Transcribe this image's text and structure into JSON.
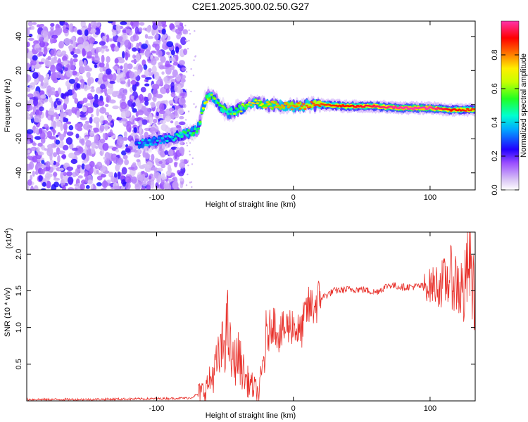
{
  "title": "C2E1.2025.300.02.50.G27",
  "chart_data": [
    {
      "type": "heatmap",
      "xlabel": "Height of straight line (km)",
      "ylabel": "Frequency (Hz)",
      "xlim": [
        -195,
        133
      ],
      "ylim": [
        -50,
        49
      ],
      "x_ticks": [
        -100,
        0,
        100
      ],
      "y_ticks": [
        -40,
        -20,
        0,
        20,
        40
      ],
      "colorbar": {
        "label": "Normalized spectral amplitude",
        "range": [
          0,
          1
        ],
        "ticks": [
          "0.0",
          "0.2",
          "0.4",
          "0.6",
          "0.8"
        ]
      },
      "noise_region_x": [
        -195,
        -79
      ],
      "signal_track": [
        {
          "x": -115,
          "freq": -23,
          "amp": 0.35
        },
        {
          "x": -90,
          "freq": -20,
          "amp": 0.4
        },
        {
          "x": -80,
          "freq": -17,
          "amp": 0.45
        },
        {
          "x": -70,
          "freq": -15,
          "amp": 0.5
        },
        {
          "x": -65,
          "freq": 2,
          "amp": 0.6
        },
        {
          "x": -60,
          "freq": 6,
          "amp": 0.55
        },
        {
          "x": -55,
          "freq": 1,
          "amp": 0.5
        },
        {
          "x": -48,
          "freq": -5,
          "amp": 0.55
        },
        {
          "x": -40,
          "freq": -3,
          "amp": 0.6
        },
        {
          "x": -30,
          "freq": 1,
          "amp": 0.65
        },
        {
          "x": -20,
          "freq": 0,
          "amp": 0.75
        },
        {
          "x": 0,
          "freq": -1,
          "amp": 0.8
        },
        {
          "x": 20,
          "freq": 0,
          "amp": 0.85
        },
        {
          "x": 40,
          "freq": -1,
          "amp": 0.9
        },
        {
          "x": 60,
          "freq": -1,
          "amp": 0.95
        },
        {
          "x": 80,
          "freq": -2,
          "amp": 1.0
        },
        {
          "x": 100,
          "freq": -2,
          "amp": 1.0
        },
        {
          "x": 115,
          "freq": -3,
          "amp": 0.9
        },
        {
          "x": 133,
          "freq": -3,
          "amp": 0.85
        }
      ]
    },
    {
      "type": "line",
      "xlabel": "Height of straight line (km)",
      "ylabel": "SNR (10 * v/v)",
      "y_multiplier_label": "(x10",
      "y_multiplier_exp": "4",
      "xlim": [
        -195,
        133
      ],
      "ylim": [
        0,
        2.3
      ],
      "x_ticks": [
        -100,
        0,
        100
      ],
      "y_ticks": [
        "0.5",
        "1.0",
        "1.5",
        "2.0"
      ],
      "color": "#e8302a",
      "series": [
        {
          "x": [
            -195,
            -150,
            -100,
            -75,
            -65,
            -60,
            -52,
            -48,
            -45,
            -40,
            -35,
            -30,
            -25,
            -20,
            -15,
            -10,
            -5,
            0,
            5,
            10,
            15,
            20,
            30,
            40,
            50,
            60,
            70,
            80,
            90,
            100,
            110,
            115,
            120,
            125,
            128,
            133
          ],
          "y": [
            0.02,
            0.02,
            0.03,
            0.04,
            0.15,
            0.3,
            0.7,
            1.0,
            0.5,
            0.6,
            0.3,
            0.2,
            0.1,
            0.8,
            1.1,
            0.9,
            1.0,
            1.05,
            0.9,
            1.25,
            1.3,
            1.4,
            1.5,
            1.52,
            1.52,
            1.48,
            1.58,
            1.55,
            1.56,
            1.57,
            1.6,
            1.7,
            1.6,
            1.45,
            1.9,
            1.4
          ]
        }
      ]
    }
  ]
}
